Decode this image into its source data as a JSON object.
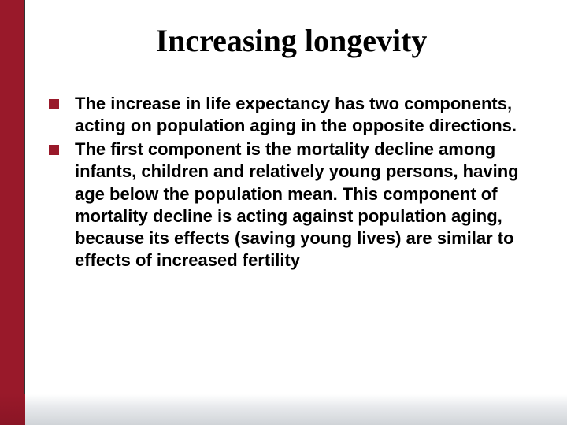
{
  "slide": {
    "title": "Increasing longevity",
    "bullets": [
      {
        "text": "The increase in life expectancy has two components, acting on population aging in the opposite directions."
      },
      {
        "text": "The first component is the mortality decline among infants, children and relatively young persons, having age below the population mean. This component of mortality decline is acting against population aging, because its effects (saving young lives) are similar to effects of increased fertility"
      }
    ]
  },
  "style": {
    "accent_color": "#99192a",
    "background_color": "#ffffff",
    "title_font": "Georgia, serif",
    "title_fontsize": 40,
    "body_font": "Verdana, sans-serif",
    "body_fontsize": 22,
    "body_fontweight": "bold",
    "bullet_marker_color": "#99192a",
    "left_bar_width": 32
  }
}
